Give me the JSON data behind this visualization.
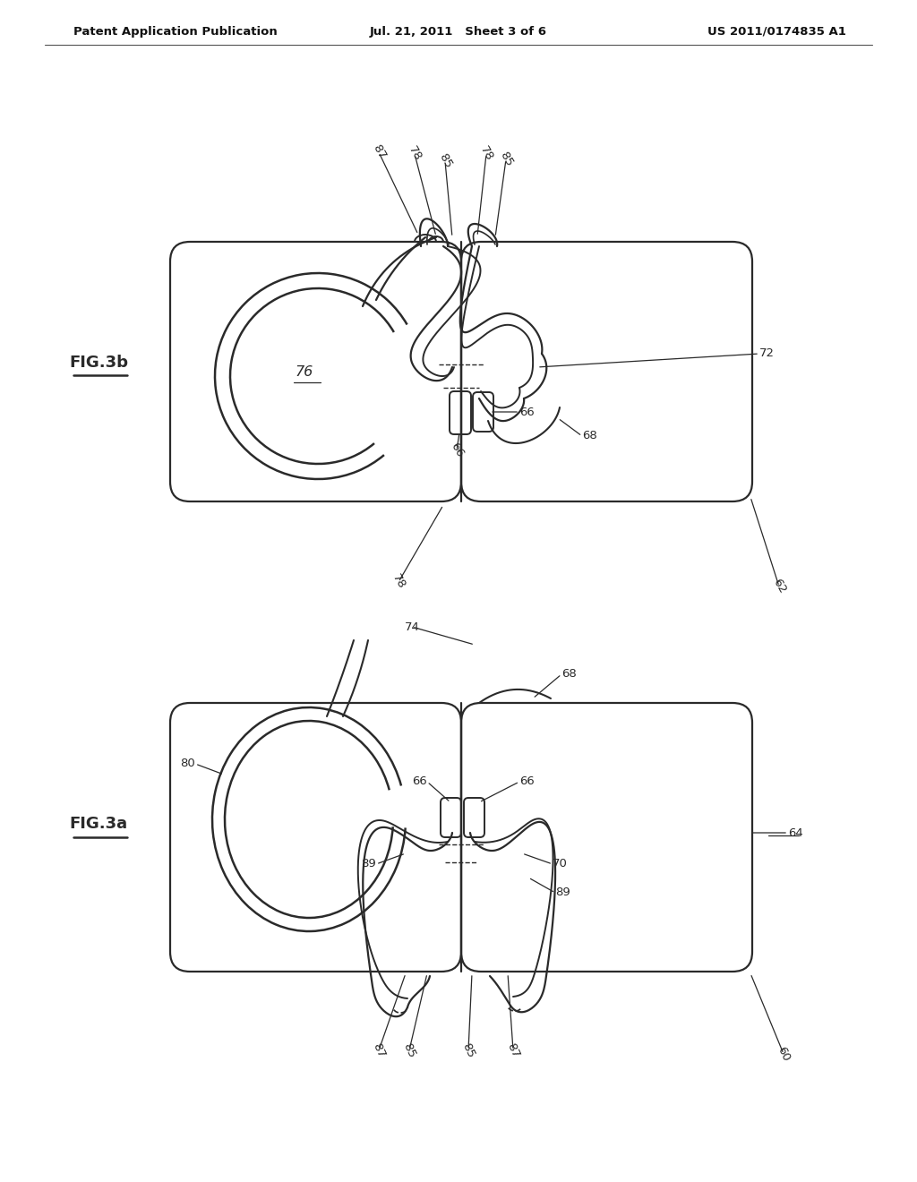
{
  "background_color": "#ffffff",
  "header_left": "Patent Application Publication",
  "header_center": "Jul. 21, 2011   Sheet 3 of 6",
  "header_right": "US 2011/0174835 A1",
  "line_color": "#2a2a2a"
}
